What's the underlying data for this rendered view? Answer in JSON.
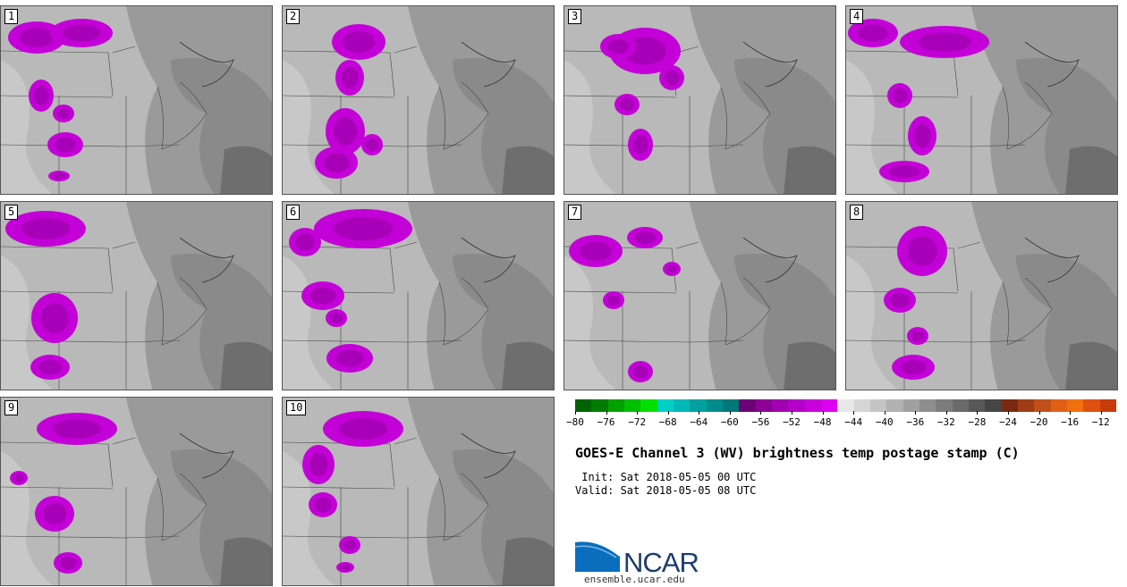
{
  "panels": [
    {
      "label": "1"
    },
    {
      "label": "2"
    },
    {
      "label": "3"
    },
    {
      "label": "4"
    },
    {
      "label": "5"
    },
    {
      "label": "6"
    },
    {
      "label": "7"
    },
    {
      "label": "8"
    },
    {
      "label": "9"
    },
    {
      "label": "10"
    }
  ],
  "colorbar": {
    "colors": [
      "#006400",
      "#007d00",
      "#00a000",
      "#00c000",
      "#00e000",
      "#00d0c8",
      "#00b8b8",
      "#00a0a0",
      "#008c8c",
      "#007878",
      "#6e0078",
      "#8c0096",
      "#a000b0",
      "#b400c8",
      "#c800dc",
      "#dc00f0",
      "#e8e8e8",
      "#d6d6d6",
      "#c4c4c4",
      "#b2b2b2",
      "#a0a0a0",
      "#8e8e8e",
      "#7c7c7c",
      "#6a6a6a",
      "#585858",
      "#464646",
      "#7a2a10",
      "#a03c14",
      "#c0501a",
      "#e06018",
      "#f07010",
      "#e05010",
      "#c83c0a"
    ],
    "tick_labels": [
      "−80",
      "−76",
      "−72",
      "−68",
      "−64",
      "−60",
      "−56",
      "−52",
      "−48",
      "−44",
      "−40",
      "−36",
      "−32",
      "−28",
      "−24",
      "−20",
      "−16",
      "−12"
    ],
    "range": [
      -80,
      -10
    ],
    "tick_step": 4
  },
  "title": "GOES-E Channel 3 (WV) brightness temp postage stamp (C)",
  "init": " Init: Sat 2018-05-05 00 UTC",
  "valid": "Valid: Sat 2018-05-05 08 UTC",
  "logo": {
    "text": "NCAR",
    "url": "ensemble.ucar.edu"
  }
}
